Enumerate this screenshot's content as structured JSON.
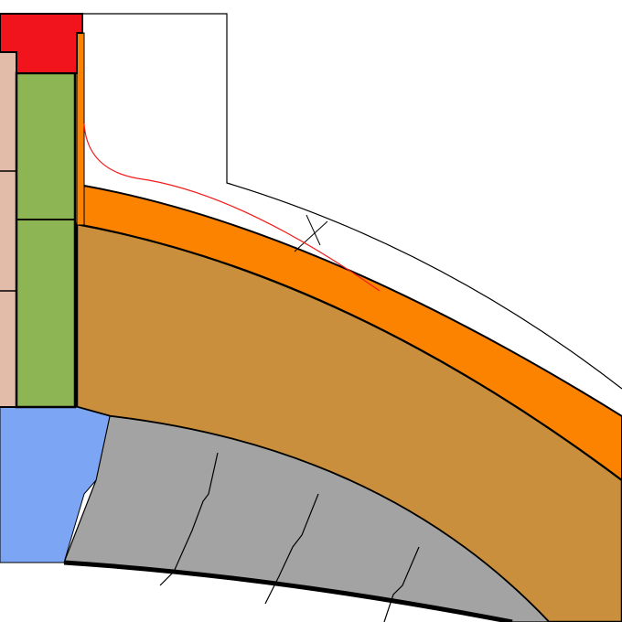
{
  "colors": {
    "red_block": "#f2141c",
    "beige_column": "#e2bca8",
    "green_column": "#8db553",
    "orange_band": "#fb8300",
    "brown_fill": "#c98f3c",
    "blue_block": "#7ca6f4",
    "gray_arch": "#a3a3a3",
    "red_curve": "#f21c1c",
    "outline": "#000000"
  }
}
